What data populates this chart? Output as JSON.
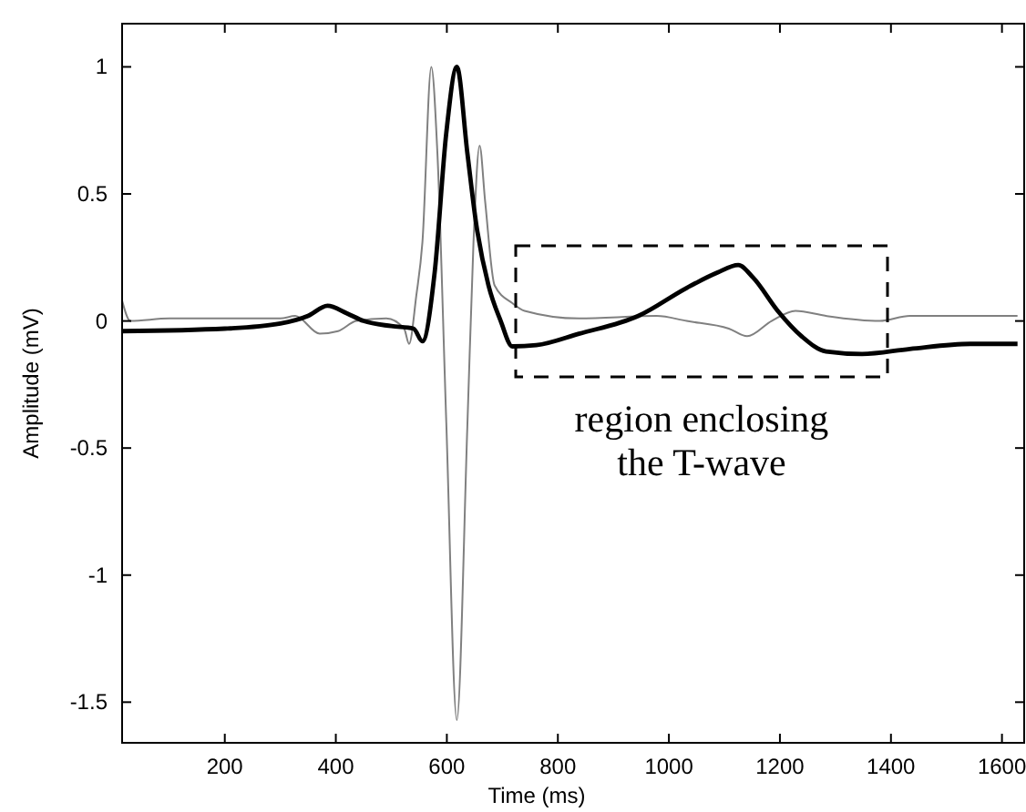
{
  "chart_data": {
    "type": "line",
    "xlabel": "Time (ms)",
    "ylabel": "Amplitude (mV)",
    "xlim": [
      15,
      1640
    ],
    "ylim": [
      -1.66,
      1.17
    ],
    "xticks": [
      200,
      400,
      600,
      800,
      1000,
      1200,
      1400,
      1600
    ],
    "yticks": [
      -1.5,
      -1,
      -0.5,
      0,
      0.5,
      1
    ],
    "grid": false,
    "line_style": "solid",
    "marker": "none",
    "annotations": [
      "region enclosing the T-wave"
    ],
    "series": [
      {
        "color": "#808080",
        "x": [
          15,
          30,
          100,
          200,
          300,
          327,
          371,
          404,
          437,
          491,
          523,
          532,
          545,
          556,
          572,
          583,
          599,
          618,
          637,
          648,
          659,
          669,
          686,
          718,
          740,
          838,
          978,
          1032,
          1108,
          1141,
          1185,
          1228,
          1283,
          1380,
          1434,
          1628
        ],
        "values": [
          0.08,
          0,
          0.01,
          0.01,
          0.01,
          0.02,
          -0.05,
          -0.04,
          0,
          0.01,
          -0.03,
          -0.09,
          0.1,
          0.31,
          1,
          0.66,
          -0.4,
          -1.57,
          -0.41,
          0.31,
          0.69,
          0.47,
          0.14,
          0.07,
          0.04,
          0.01,
          0.02,
          0,
          -0.03,
          -0.06,
          0,
          0.04,
          0.02,
          0,
          0.02,
          0.02
        ]
      },
      {
        "color": "#000000",
        "x": [
          15,
          200,
          300,
          350,
          385,
          420,
          450,
          500,
          540,
          556,
          578,
          599,
          618,
          637,
          653,
          675,
          697,
          718,
          761,
          838,
          945,
          1032,
          1087,
          1125,
          1152,
          1196,
          1239,
          1283,
          1348,
          1434,
          1543,
          1628
        ],
        "values": [
          -0.04,
          -0.03,
          -0.01,
          0.02,
          0.06,
          0.03,
          0,
          -0.02,
          -0.03,
          -0.08,
          0.19,
          0.74,
          1,
          0.66,
          0.38,
          0.14,
          0,
          -0.1,
          -0.095,
          -0.05,
          0.02,
          0.13,
          0.19,
          0.22,
          0.17,
          0.04,
          -0.06,
          -0.12,
          -0.13,
          -0.11,
          -0.09,
          -0.09
        ]
      }
    ]
  }
}
